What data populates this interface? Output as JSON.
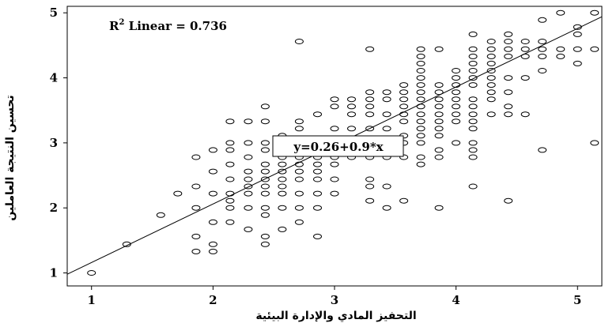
{
  "chart_data": {
    "type": "scatter",
    "xlabel": "التحفيز المادي والإدارة البيئية",
    "ylabel": "تحسين النتيجة العاملين",
    "xlim": [
      0.8,
      5.2
    ],
    "ylim": [
      0.8,
      5.1
    ],
    "xticks": [
      1,
      2,
      3,
      4,
      5
    ],
    "yticks": [
      1,
      2,
      3,
      4,
      5
    ],
    "grid": false,
    "fit_line": {
      "intercept": 0.26,
      "slope": 0.9
    },
    "annotations": {
      "r2_prefix": "R",
      "r2_sup": "2",
      "r2_rest": " Linear = 0.736",
      "equation": "y=0.26+0.9*x"
    },
    "marker_color": "#000000",
    "points": [
      [
        1.0,
        1.0
      ],
      [
        1.29,
        1.44
      ],
      [
        1.57,
        1.89
      ],
      [
        1.71,
        2.22
      ],
      [
        1.86,
        1.33
      ],
      [
        1.86,
        1.56
      ],
      [
        1.86,
        2.0
      ],
      [
        1.86,
        2.33
      ],
      [
        1.86,
        2.78
      ],
      [
        2.0,
        1.33
      ],
      [
        2.0,
        1.44
      ],
      [
        2.0,
        1.78
      ],
      [
        2.0,
        2.22
      ],
      [
        2.0,
        2.56
      ],
      [
        2.0,
        2.89
      ],
      [
        2.14,
        1.78
      ],
      [
        2.14,
        2.0
      ],
      [
        2.14,
        2.11
      ],
      [
        2.14,
        2.22
      ],
      [
        2.14,
        2.44
      ],
      [
        2.14,
        2.67
      ],
      [
        2.14,
        2.89
      ],
      [
        2.14,
        3.0
      ],
      [
        2.14,
        3.33
      ],
      [
        2.29,
        1.67
      ],
      [
        2.29,
        2.0
      ],
      [
        2.29,
        2.22
      ],
      [
        2.29,
        2.33
      ],
      [
        2.29,
        2.44
      ],
      [
        2.29,
        2.56
      ],
      [
        2.29,
        2.78
      ],
      [
        2.29,
        3.0
      ],
      [
        2.29,
        3.33
      ],
      [
        2.43,
        1.44
      ],
      [
        2.43,
        1.56
      ],
      [
        2.43,
        1.89
      ],
      [
        2.43,
        2.0
      ],
      [
        2.43,
        2.22
      ],
      [
        2.43,
        2.33
      ],
      [
        2.43,
        2.44
      ],
      [
        2.43,
        2.56
      ],
      [
        2.43,
        2.67
      ],
      [
        2.43,
        2.89
      ],
      [
        2.43,
        3.0
      ],
      [
        2.43,
        3.33
      ],
      [
        2.43,
        3.56
      ],
      [
        2.57,
        1.67
      ],
      [
        2.57,
        2.0
      ],
      [
        2.57,
        2.22
      ],
      [
        2.57,
        2.33
      ],
      [
        2.57,
        2.44
      ],
      [
        2.57,
        2.56
      ],
      [
        2.57,
        2.67
      ],
      [
        2.57,
        2.78
      ],
      [
        2.57,
        3.0
      ],
      [
        2.57,
        3.11
      ],
      [
        2.71,
        1.78
      ],
      [
        2.71,
        2.0
      ],
      [
        2.71,
        2.22
      ],
      [
        2.71,
        2.44
      ],
      [
        2.71,
        2.56
      ],
      [
        2.71,
        2.67
      ],
      [
        2.71,
        2.78
      ],
      [
        2.71,
        2.89
      ],
      [
        2.71,
        3.0
      ],
      [
        2.71,
        3.22
      ],
      [
        2.71,
        3.33
      ],
      [
        2.71,
        4.56
      ],
      [
        2.86,
        1.56
      ],
      [
        2.86,
        2.0
      ],
      [
        2.86,
        2.22
      ],
      [
        2.86,
        2.44
      ],
      [
        2.86,
        2.56
      ],
      [
        2.86,
        2.67
      ],
      [
        2.86,
        2.78
      ],
      [
        2.86,
        2.89
      ],
      [
        2.86,
        3.0
      ],
      [
        2.86,
        3.44
      ],
      [
        3.0,
        2.22
      ],
      [
        3.0,
        2.44
      ],
      [
        3.0,
        2.67
      ],
      [
        3.0,
        2.78
      ],
      [
        3.0,
        3.0
      ],
      [
        3.0,
        3.22
      ],
      [
        3.0,
        3.56
      ],
      [
        3.0,
        3.67
      ],
      [
        3.14,
        2.78
      ],
      [
        3.14,
        2.89
      ],
      [
        3.14,
        3.0
      ],
      [
        3.14,
        3.22
      ],
      [
        3.14,
        3.44
      ],
      [
        3.14,
        3.56
      ],
      [
        3.14,
        3.67
      ],
      [
        3.29,
        2.11
      ],
      [
        3.29,
        2.33
      ],
      [
        3.29,
        2.44
      ],
      [
        3.29,
        2.78
      ],
      [
        3.29,
        3.0
      ],
      [
        3.29,
        3.22
      ],
      [
        3.29,
        3.44
      ],
      [
        3.29,
        3.56
      ],
      [
        3.29,
        3.67
      ],
      [
        3.29,
        3.78
      ],
      [
        3.29,
        4.44
      ],
      [
        3.43,
        2.0
      ],
      [
        3.43,
        2.33
      ],
      [
        3.43,
        2.78
      ],
      [
        3.43,
        3.0
      ],
      [
        3.43,
        3.22
      ],
      [
        3.43,
        3.44
      ],
      [
        3.43,
        3.67
      ],
      [
        3.43,
        3.78
      ],
      [
        3.57,
        2.11
      ],
      [
        3.57,
        2.78
      ],
      [
        3.57,
        3.0
      ],
      [
        3.57,
        3.11
      ],
      [
        3.57,
        3.33
      ],
      [
        3.57,
        3.44
      ],
      [
        3.57,
        3.56
      ],
      [
        3.57,
        3.67
      ],
      [
        3.57,
        3.78
      ],
      [
        3.57,
        3.89
      ],
      [
        3.71,
        2.67
      ],
      [
        3.71,
        2.78
      ],
      [
        3.71,
        3.0
      ],
      [
        3.71,
        3.11
      ],
      [
        3.71,
        3.22
      ],
      [
        3.71,
        3.33
      ],
      [
        3.71,
        3.44
      ],
      [
        3.71,
        3.56
      ],
      [
        3.71,
        3.67
      ],
      [
        3.71,
        3.78
      ],
      [
        3.71,
        3.89
      ],
      [
        3.71,
        4.0
      ],
      [
        3.71,
        4.11
      ],
      [
        3.71,
        4.22
      ],
      [
        3.71,
        4.33
      ],
      [
        3.71,
        4.44
      ],
      [
        3.86,
        2.0
      ],
      [
        3.86,
        2.78
      ],
      [
        3.86,
        2.89
      ],
      [
        3.86,
        3.11
      ],
      [
        3.86,
        3.22
      ],
      [
        3.86,
        3.33
      ],
      [
        3.86,
        3.44
      ],
      [
        3.86,
        3.56
      ],
      [
        3.86,
        3.67
      ],
      [
        3.86,
        3.78
      ],
      [
        3.86,
        3.89
      ],
      [
        3.86,
        4.44
      ],
      [
        4.0,
        3.0
      ],
      [
        4.0,
        3.33
      ],
      [
        4.0,
        3.44
      ],
      [
        4.0,
        3.56
      ],
      [
        4.0,
        3.67
      ],
      [
        4.0,
        3.78
      ],
      [
        4.0,
        3.89
      ],
      [
        4.0,
        4.0
      ],
      [
        4.0,
        4.11
      ],
      [
        4.14,
        2.33
      ],
      [
        4.14,
        2.78
      ],
      [
        4.14,
        2.89
      ],
      [
        4.14,
        3.0
      ],
      [
        4.14,
        3.22
      ],
      [
        4.14,
        3.33
      ],
      [
        4.14,
        3.44
      ],
      [
        4.14,
        3.56
      ],
      [
        4.14,
        3.67
      ],
      [
        4.14,
        3.89
      ],
      [
        4.14,
        4.0
      ],
      [
        4.14,
        4.11
      ],
      [
        4.14,
        4.22
      ],
      [
        4.14,
        4.33
      ],
      [
        4.14,
        4.44
      ],
      [
        4.14,
        4.67
      ],
      [
        4.29,
        3.44
      ],
      [
        4.29,
        3.67
      ],
      [
        4.29,
        3.78
      ],
      [
        4.29,
        3.89
      ],
      [
        4.29,
        4.0
      ],
      [
        4.29,
        4.11
      ],
      [
        4.29,
        4.22
      ],
      [
        4.29,
        4.33
      ],
      [
        4.29,
        4.44
      ],
      [
        4.29,
        4.56
      ],
      [
        4.43,
        2.11
      ],
      [
        4.43,
        3.44
      ],
      [
        4.43,
        3.56
      ],
      [
        4.43,
        3.78
      ],
      [
        4.43,
        4.0
      ],
      [
        4.43,
        4.33
      ],
      [
        4.43,
        4.44
      ],
      [
        4.43,
        4.56
      ],
      [
        4.43,
        4.67
      ],
      [
        4.57,
        3.44
      ],
      [
        4.57,
        4.0
      ],
      [
        4.57,
        4.33
      ],
      [
        4.57,
        4.44
      ],
      [
        4.57,
        4.56
      ],
      [
        4.71,
        2.89
      ],
      [
        4.71,
        4.11
      ],
      [
        4.71,
        4.33
      ],
      [
        4.71,
        4.44
      ],
      [
        4.71,
        4.56
      ],
      [
        4.71,
        4.89
      ],
      [
        4.86,
        4.33
      ],
      [
        4.86,
        4.44
      ],
      [
        4.86,
        5.0
      ],
      [
        5.0,
        4.22
      ],
      [
        5.0,
        4.44
      ],
      [
        5.0,
        4.67
      ],
      [
        5.0,
        4.78
      ],
      [
        5.14,
        3.0
      ],
      [
        5.14,
        4.44
      ],
      [
        5.14,
        5.0
      ]
    ]
  }
}
